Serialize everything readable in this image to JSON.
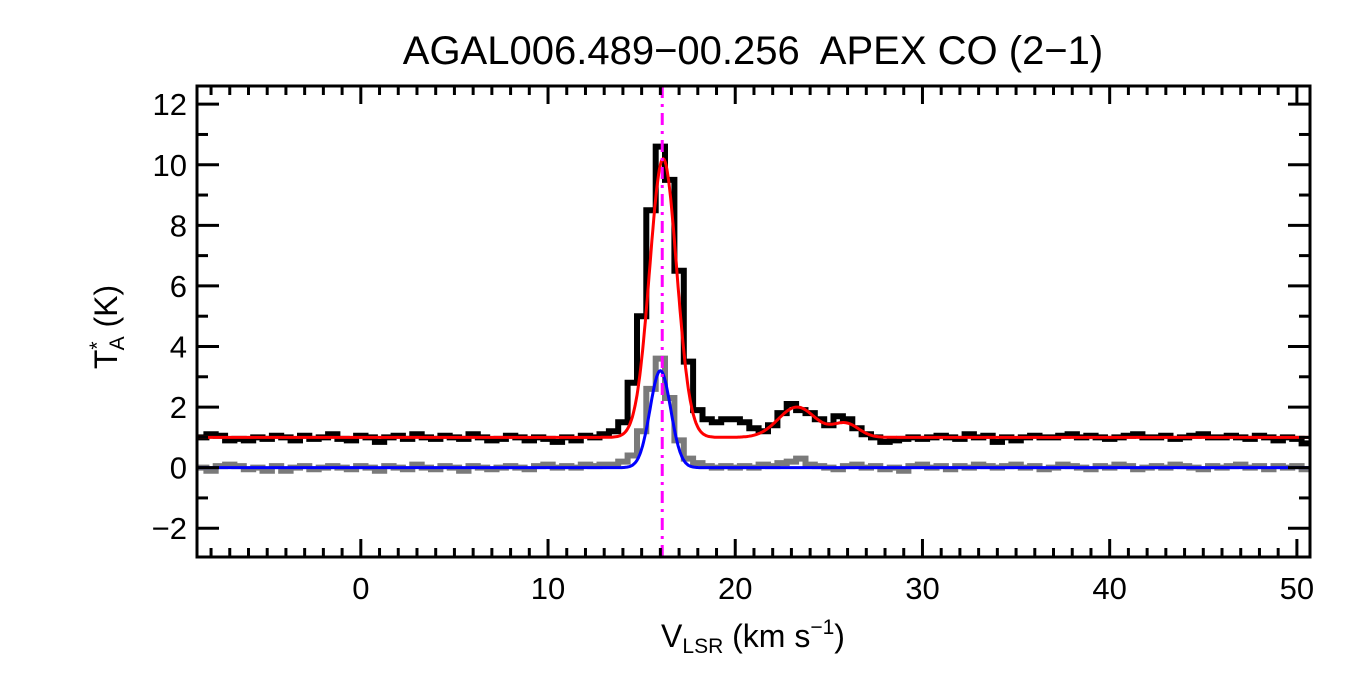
{
  "chart_data": {
    "type": "line",
    "title": "AGAL006.489−00.256  APEX CO (2−1)",
    "xlabel": {
      "main": "V",
      "sub": "LSR",
      "rest": " (km s",
      "sup": "−1",
      "end": ")"
    },
    "ylabel": {
      "main": "T",
      "sup": "*",
      "sub": "A",
      "rest": " (K)"
    },
    "xlim": [
      -8.75,
      50.7
    ],
    "ylim": [
      -2.95,
      12.6
    ],
    "x_ticks": [
      0,
      10,
      20,
      30,
      40,
      50
    ],
    "x_tick_labels": [
      "0",
      "10",
      "20",
      "30",
      "40",
      "50"
    ],
    "y_ticks": [
      -2,
      0,
      2,
      4,
      6,
      8,
      10,
      12
    ],
    "y_tick_labels": [
      "−2",
      "0",
      "2",
      "4",
      "6",
      "8",
      "10",
      "12"
    ],
    "grid": false,
    "x": [
      -8.5,
      -8,
      -7.5,
      -7,
      -6.5,
      -6,
      -5.5,
      -5,
      -4.5,
      -4,
      -3.5,
      -3,
      -2.5,
      -2,
      -1.5,
      -1,
      -0.5,
      0,
      0.5,
      1,
      1.5,
      2,
      2.5,
      3,
      3.5,
      4,
      4.5,
      5,
      5.5,
      6,
      6.5,
      7,
      7.5,
      8,
      8.5,
      9,
      9.5,
      10,
      10.5,
      11,
      11.5,
      12,
      12.5,
      13,
      13.5,
      14,
      14.5,
      15,
      15.5,
      16,
      16.5,
      17,
      17.5,
      18,
      18.5,
      19,
      19.5,
      20,
      20.5,
      21,
      21.5,
      22,
      22.5,
      23,
      23.5,
      24,
      24.5,
      25,
      25.5,
      26,
      26.5,
      27,
      27.5,
      28,
      28.5,
      29,
      29.5,
      30,
      30.5,
      31,
      31.5,
      32,
      32.5,
      33,
      33.5,
      34,
      34.5,
      35,
      35.5,
      36,
      36.5,
      37,
      37.5,
      38,
      38.5,
      39,
      39.5,
      40,
      40.5,
      41,
      41.5,
      42,
      42.5,
      43,
      43.5,
      44,
      44.5,
      45,
      45.5,
      46,
      46.5,
      47,
      47.5,
      48,
      48.5,
      49,
      49.5,
      50,
      50.5
    ],
    "series": [
      {
        "style": "histogram",
        "color": "#000000",
        "values": [
          1.0,
          1.1,
          1.05,
          0.9,
          0.95,
          0.9,
          1.0,
          0.95,
          1.05,
          1.0,
          0.9,
          1.05,
          0.95,
          1.0,
          1.1,
          0.95,
          0.9,
          1.05,
          1.0,
          0.85,
          1.0,
          1.05,
          0.95,
          1.1,
          1.0,
          0.95,
          1.05,
          1.0,
          0.95,
          1.1,
          1.0,
          0.9,
          0.95,
          1.05,
          1.0,
          0.9,
          1.0,
          0.95,
          0.85,
          1.0,
          0.9,
          1.05,
          1.0,
          1.1,
          1.2,
          1.5,
          2.8,
          5.0,
          8.5,
          10.6,
          9.5,
          6.5,
          3.5,
          1.9,
          1.6,
          1.5,
          1.6,
          1.6,
          1.5,
          1.3,
          1.2,
          1.4,
          1.8,
          2.1,
          1.9,
          1.8,
          1.6,
          1.4,
          1.7,
          1.6,
          1.3,
          1.1,
          1.0,
          0.85,
          0.9,
          0.95,
          1.0,
          0.95,
          1.0,
          1.05,
          1.0,
          0.95,
          1.1,
          1.0,
          1.05,
          0.85,
          1.0,
          0.9,
          1.0,
          1.05,
          1.0,
          1.0,
          1.05,
          1.1,
          1.0,
          1.05,
          1.0,
          0.95,
          1.0,
          1.05,
          1.1,
          1.0,
          1.0,
          1.05,
          0.95,
          1.0,
          1.05,
          1.1,
          1.0,
          1.0,
          1.05,
          1.0,
          0.95,
          1.05,
          1.0,
          0.9,
          1.0,
          0.95,
          0.8
        ]
      },
      {
        "style": "histogram",
        "color": "#7a7a7a",
        "values": [
          0.0,
          -0.1,
          0.05,
          0.1,
          0.05,
          -0.05,
          0.0,
          -0.1,
          0.05,
          -0.1,
          0.0,
          0.05,
          -0.05,
          0.0,
          0.05,
          0.0,
          -0.05,
          0.05,
          0.0,
          -0.1,
          0.05,
          0.0,
          -0.05,
          0.1,
          0.0,
          -0.05,
          0.05,
          0.0,
          -0.1,
          0.05,
          0.0,
          -0.05,
          0.0,
          0.05,
          0.0,
          -0.05,
          0.05,
          0.1,
          0.0,
          0.05,
          0.0,
          0.1,
          0.05,
          0.1,
          0.1,
          0.2,
          0.4,
          1.2,
          2.6,
          3.6,
          2.3,
          0.9,
          0.3,
          0.15,
          0.05,
          0.0,
          0.05,
          0.0,
          0.05,
          0.0,
          0.1,
          0.05,
          0.15,
          0.2,
          0.3,
          0.1,
          0.05,
          0.0,
          -0.05,
          0.05,
          0.1,
          0.0,
          0.05,
          -0.05,
          0.0,
          -0.1,
          0.05,
          0.1,
          0.0,
          0.05,
          -0.05,
          0.05,
          0.0,
          0.1,
          0.05,
          0.0,
          0.05,
          0.1,
          0.0,
          0.05,
          -0.05,
          0.0,
          0.1,
          0.05,
          0.0,
          -0.05,
          0.05,
          0.0,
          0.1,
          0.05,
          -0.05,
          0.0,
          0.05,
          0.0,
          0.1,
          0.05,
          0.0,
          -0.05,
          0.05,
          0.0,
          0.05,
          0.1,
          0.0,
          0.05,
          -0.05,
          0.05,
          0.0,
          0.05,
          -0.05
        ]
      }
    ],
    "fits": [
      {
        "color": "#ff0000",
        "baseline": 1.0,
        "gaussians": [
          {
            "amp": 9.2,
            "center": 16.15,
            "sigma": 0.72
          },
          {
            "amp": 1.0,
            "center": 23.3,
            "sigma": 1.0
          },
          {
            "amp": 0.45,
            "center": 25.9,
            "sigma": 0.7
          }
        ]
      },
      {
        "color": "#0000ff",
        "baseline": 0.0,
        "gaussians": [
          {
            "amp": 3.2,
            "center": 16.0,
            "sigma": 0.55
          }
        ]
      }
    ],
    "vline": {
      "x": 16.1,
      "color": "#ff00ff",
      "style": "dash-dot"
    }
  }
}
